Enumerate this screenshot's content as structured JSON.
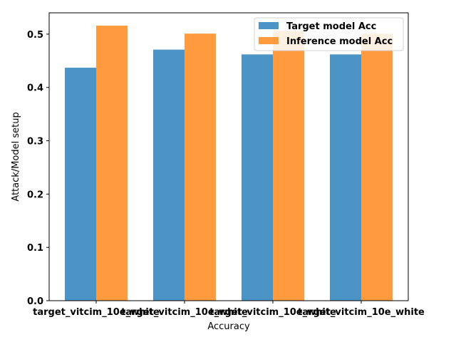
{
  "chart_data": {
    "type": "bar",
    "title": "",
    "xlabel": "Accuracy",
    "ylabel": "Attack/Model setup",
    "categories": [
      "target_vitcim_10e_white",
      "target_vitcim_10e_white",
      "target_vitcim_10e_white",
      "target_vitcim_10e_white"
    ],
    "series": [
      {
        "name": "Target model Acc",
        "color": "#4c93c6",
        "values": [
          0.437,
          0.471,
          0.462,
          0.462
        ]
      },
      {
        "name": "Inference model Acc",
        "color": "#ff9a3f",
        "values": [
          0.516,
          0.501,
          0.506,
          0.501
        ]
      }
    ],
    "ylim": [
      0,
      0.54
    ],
    "yticks": [
      0.0,
      0.1,
      0.2,
      0.3,
      0.4,
      0.5
    ],
    "ytick_labels": [
      "0.0",
      "0.1",
      "0.2",
      "0.3",
      "0.4",
      "0.5"
    ],
    "grid": false,
    "legend_position": "top-right"
  }
}
